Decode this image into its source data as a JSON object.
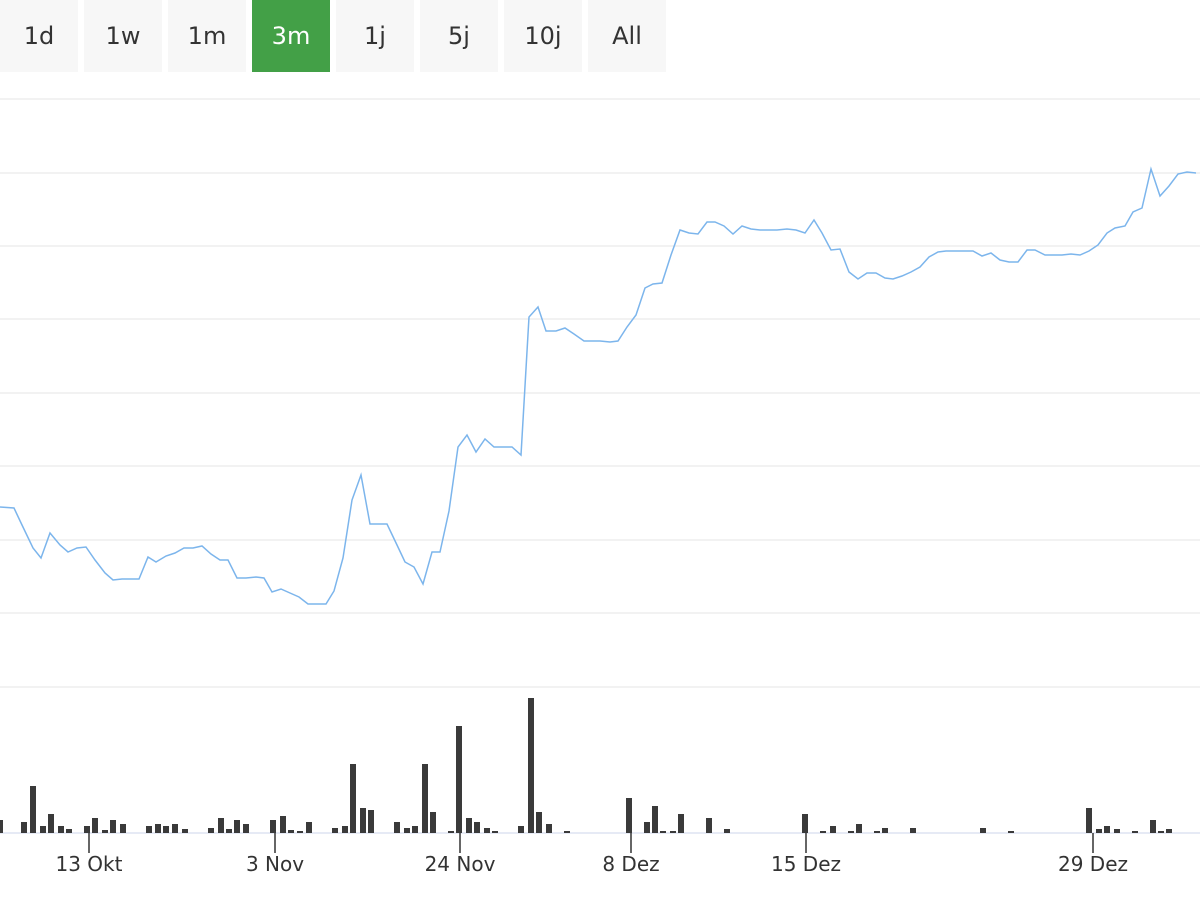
{
  "range_selector": {
    "buttons": [
      "1d",
      "1w",
      "1m",
      "3m",
      "1j",
      "5j",
      "10j",
      "All"
    ],
    "selected": 3
  },
  "chart_data": [
    {
      "type": "line",
      "color": "#7cb5ec",
      "grid": true,
      "x": [
        0,
        14,
        22,
        33,
        41,
        50,
        60,
        68,
        77,
        86,
        95,
        105,
        113,
        122,
        139,
        148,
        156,
        166,
        175,
        184,
        193,
        202,
        211,
        220,
        228,
        237,
        246,
        256,
        264,
        272,
        281,
        290,
        299,
        308,
        326,
        334,
        343,
        352,
        361,
        370,
        387,
        397,
        405,
        414,
        423,
        432,
        440,
        449,
        458,
        467,
        476,
        485,
        494,
        512,
        521,
        529,
        538,
        546,
        556,
        565,
        574,
        584,
        600,
        610,
        618,
        627,
        636,
        645,
        653,
        662,
        671,
        680,
        689,
        698,
        707,
        715,
        724,
        733,
        742,
        751,
        760,
        777,
        787,
        796,
        805,
        814,
        822,
        831,
        840,
        849,
        858,
        867,
        876,
        885,
        893,
        902,
        911,
        920,
        929,
        938,
        946,
        964,
        973,
        982,
        991,
        1000,
        1009,
        1018,
        1027,
        1035,
        1045,
        1062,
        1071,
        1080,
        1089,
        1098,
        1107,
        1115,
        1125,
        1133,
        1142,
        1151,
        1160,
        1169,
        1178,
        1187,
        1196
      ],
      "values": [
        180,
        179,
        162,
        139,
        129,
        154,
        142,
        135,
        139,
        140,
        127,
        114,
        107,
        108,
        108,
        130,
        125,
        131,
        134,
        139,
        139,
        141,
        133,
        127,
        127,
        109,
        109,
        110,
        109,
        95,
        98,
        94,
        90,
        83,
        83,
        96,
        129,
        187,
        212,
        163,
        163,
        142,
        125,
        120,
        103,
        135,
        135,
        176,
        240,
        252,
        235,
        248,
        240,
        240,
        232,
        370,
        380,
        356,
        356,
        359,
        353,
        346,
        346,
        345,
        346,
        360,
        372,
        399,
        403,
        404,
        432,
        457,
        454,
        453,
        465,
        465,
        461,
        453,
        461,
        458,
        457,
        457,
        458,
        457,
        454,
        467,
        454,
        437,
        438,
        415,
        408,
        414,
        414,
        409,
        408,
        411,
        415,
        420,
        430,
        435,
        436,
        436,
        436,
        431,
        434,
        427,
        425,
        425,
        437,
        437,
        432,
        432,
        433,
        432,
        436,
        442,
        454,
        459,
        461,
        475,
        479,
        518,
        491,
        501,
        513,
        515,
        514
      ],
      "xlim": [
        0,
        1200
      ],
      "ylim": [
        0,
        588
      ],
      "yticks": [
        0,
        74,
        147,
        221,
        294,
        368,
        441,
        514,
        588
      ],
      "xticks": [
        {
          "value": 89,
          "label": "13 Okt"
        },
        {
          "value": 275,
          "label": "3 Nov"
        },
        {
          "value": 460,
          "label": "24 Nov"
        },
        {
          "value": 631,
          "label": "8 Dez"
        },
        {
          "value": 806,
          "label": "15 Dez"
        },
        {
          "value": 1093,
          "label": "29 Dez"
        }
      ]
    },
    {
      "type": "bar",
      "color": "#3a3a3a",
      "x": [
        0,
        24,
        33,
        43,
        51,
        61,
        69,
        87,
        95,
        105,
        113,
        123,
        149,
        158,
        166,
        175,
        185,
        211,
        221,
        229,
        237,
        246,
        273,
        283,
        291,
        300,
        309,
        335,
        345,
        353,
        363,
        371,
        397,
        407,
        415,
        425,
        433,
        451,
        459,
        469,
        477,
        487,
        495,
        521,
        531,
        539,
        549,
        567,
        629,
        647,
        655,
        663,
        673,
        681,
        709,
        727,
        805,
        823,
        833,
        851,
        859,
        877,
        885,
        913,
        983,
        1011,
        1089,
        1099,
        1107,
        1117,
        1135,
        1153,
        1161,
        1169
      ],
      "values": [
        13,
        11,
        47,
        7,
        19,
        7,
        4,
        7,
        15,
        3,
        13,
        9,
        7,
        9,
        7,
        9,
        4,
        5,
        15,
        4,
        13,
        9,
        13,
        17,
        3,
        2,
        11,
        5,
        7,
        69,
        25,
        23,
        11,
        5,
        7,
        69,
        21,
        2,
        107,
        15,
        11,
        5,
        2,
        7,
        135,
        21,
        9,
        2,
        35,
        11,
        27,
        2,
        2,
        19,
        15,
        4,
        19,
        2,
        7,
        2,
        9,
        2,
        5,
        5,
        5,
        2,
        25,
        4,
        7,
        4,
        2,
        13,
        2,
        4
      ],
      "xlim": [
        0,
        1200
      ],
      "ylim": [
        0,
        146
      ]
    }
  ]
}
